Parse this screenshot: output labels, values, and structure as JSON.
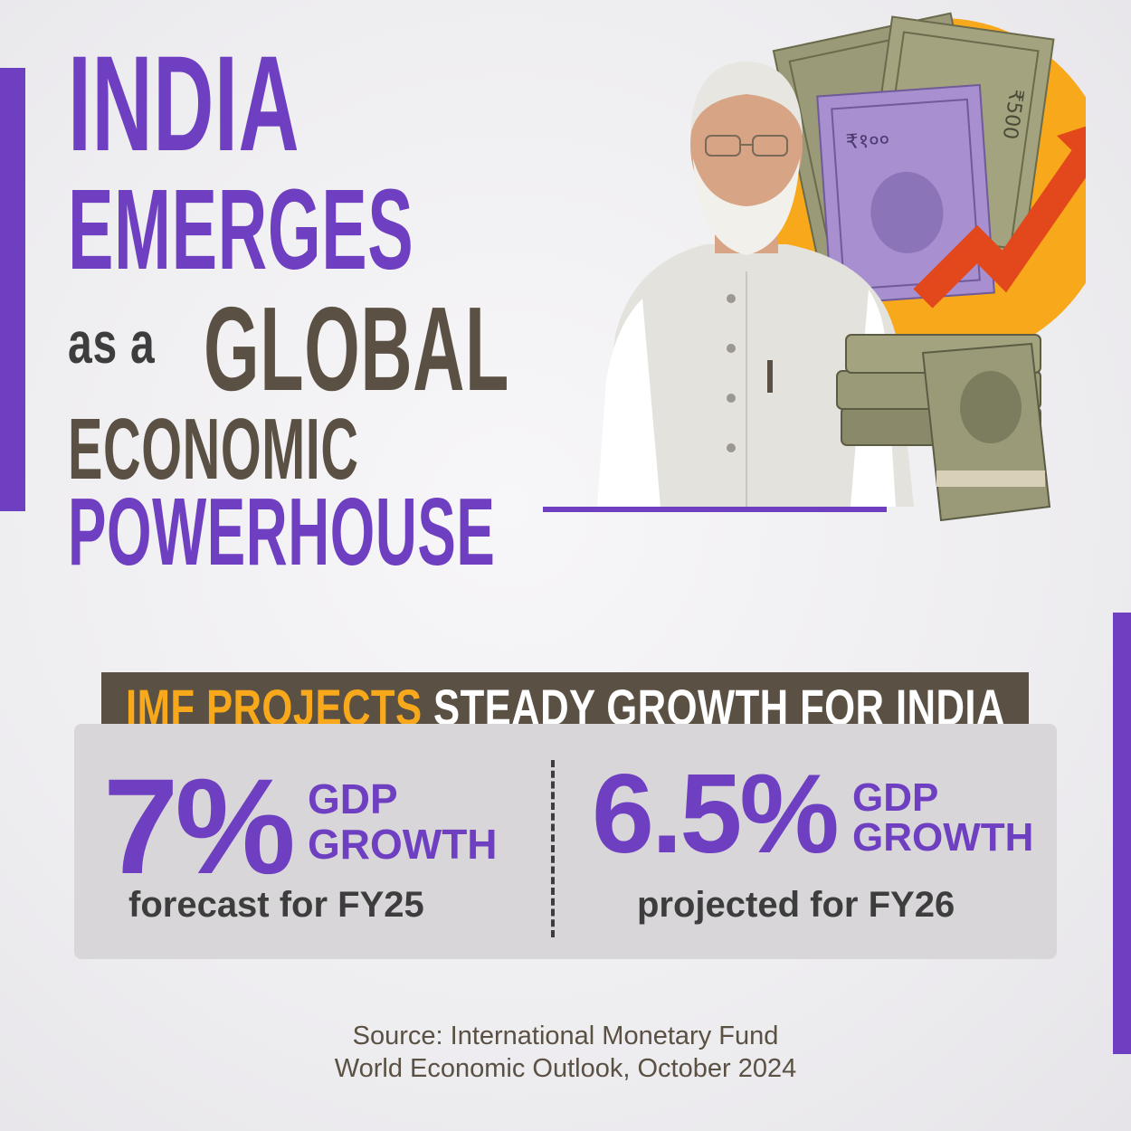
{
  "headline": {
    "line1": "INDIA",
    "line2": "EMERGES",
    "line3a": "as a",
    "line3b": "GLOBAL",
    "line4": "ECONOMIC",
    "line5": "POWERHOUSE"
  },
  "banner": {
    "highlight": "IMF PROJECTS",
    "rest": "STEADY GROWTH FOR INDIA"
  },
  "stats": [
    {
      "value": "7%",
      "label1": "GDP",
      "label2": "GROWTH",
      "sub": "forecast for FY25"
    },
    {
      "value": "6.5%",
      "label1": "GDP",
      "label2": "GROWTH",
      "sub": "projected for FY26"
    }
  ],
  "note_text": {
    "bill_denomination": "₹500",
    "bill_small": "₹१००"
  },
  "source": {
    "line1": "Source: International Monetary Fund",
    "line2": "World Economic Outlook, October 2024"
  },
  "colors": {
    "purple": "#6f3fc1",
    "brown": "#5a5043",
    "orange": "#f7a81b",
    "card": "#d8d6d8"
  }
}
